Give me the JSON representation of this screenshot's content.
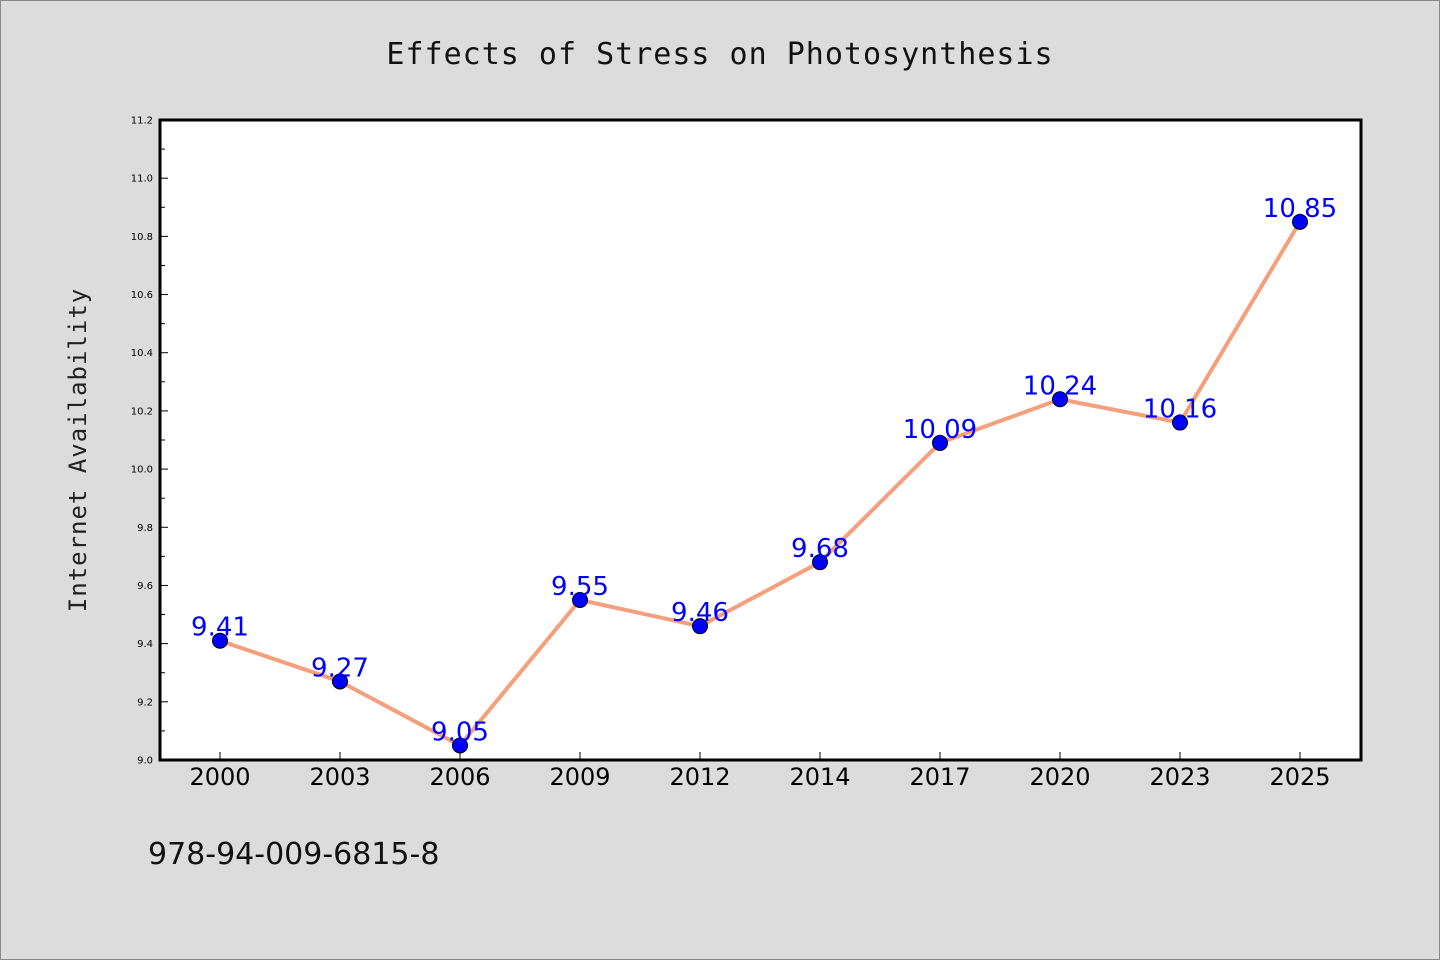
{
  "chart_data": {
    "type": "line",
    "title": "Effects of Stress on Photosynthesis",
    "xlabel": "",
    "ylabel": "Internet Availability",
    "categories": [
      "2000",
      "2003",
      "2006",
      "2009",
      "2012",
      "2014",
      "2017",
      "2020",
      "2023",
      "2025"
    ],
    "series": [
      {
        "values": [
          9.41,
          9.27,
          9.05,
          9.55,
          9.46,
          9.68,
          10.09,
          10.24,
          10.16,
          10.85
        ]
      }
    ],
    "data_labels": [
      "9.41",
      "9.27",
      "9.05",
      "9.55",
      "9.46",
      "9.68",
      "10.09",
      "10.24",
      "10.16",
      "10.85"
    ],
    "ylim": [
      9.0,
      11.2
    ],
    "yticks": [
      "9.0",
      "9.2",
      "9.4",
      "9.6",
      "9.8",
      "10.0",
      "10.2",
      "10.4",
      "10.6",
      "10.8",
      "11.0",
      "11.2"
    ],
    "grid": false,
    "line_color": "#f4a07c",
    "marker_color": "#0000ff",
    "label_color": "#0000ff",
    "background_color": "#dcdcdc",
    "plot_background_color": "#ffffff"
  },
  "footer": {
    "isbn": "978-94-009-6815-8"
  }
}
